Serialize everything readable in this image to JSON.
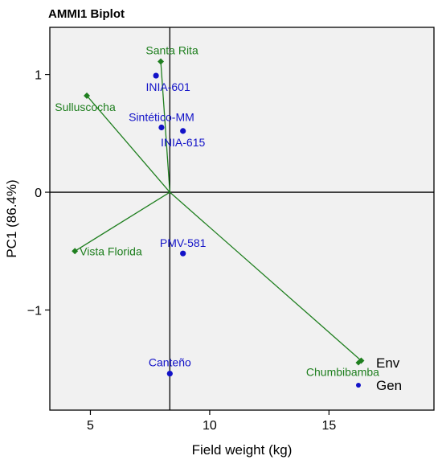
{
  "chart_data": {
    "type": "scatter",
    "title": "AMMI1 Biplot",
    "xlabel": "Field weight (kg)",
    "ylabel": "PC1 (86.4%)",
    "xlim": [
      3.3,
      19.4
    ],
    "ylim": [
      -1.85,
      1.4
    ],
    "xticks": [
      5,
      10,
      15
    ],
    "yticks": [
      1,
      0,
      -1
    ],
    "tick_labels_x": [
      "5",
      "10",
      "15"
    ],
    "tick_labels_y": [
      "1",
      "0",
      "−1"
    ],
    "grid": false,
    "origin": {
      "x": 8.33,
      "y": 0
    },
    "colors": {
      "env": "#1f7f1f",
      "gen": "#1212c8",
      "plot_bg": "#f1f1f1",
      "frame": "#000000"
    },
    "series": [
      {
        "name": "Env",
        "marker": "diamond",
        "points": [
          {
            "label": "Santa Rita",
            "x": 7.95,
            "y": 1.11
          },
          {
            "label": "Sulluscocha",
            "x": 4.85,
            "y": 0.82
          },
          {
            "label": "Vista Florida",
            "x": 4.35,
            "y": -0.5
          },
          {
            "label": "Chumbibamba",
            "x": 16.35,
            "y": -1.43
          }
        ]
      },
      {
        "name": "Gen",
        "marker": "circle",
        "points": [
          {
            "label": "INIA-601",
            "x": 7.75,
            "y": 0.99
          },
          {
            "label": "Sintético-MM",
            "x": 7.98,
            "y": 0.55
          },
          {
            "label": "INIA-615",
            "x": 8.88,
            "y": 0.52
          },
          {
            "label": "PMV-581",
            "x": 8.88,
            "y": -0.52
          },
          {
            "label": "Canteño",
            "x": 8.33,
            "y": -1.54
          }
        ]
      }
    ],
    "legend": {
      "placement": "bottom-right",
      "entries": [
        "Env",
        "Gen"
      ]
    }
  }
}
